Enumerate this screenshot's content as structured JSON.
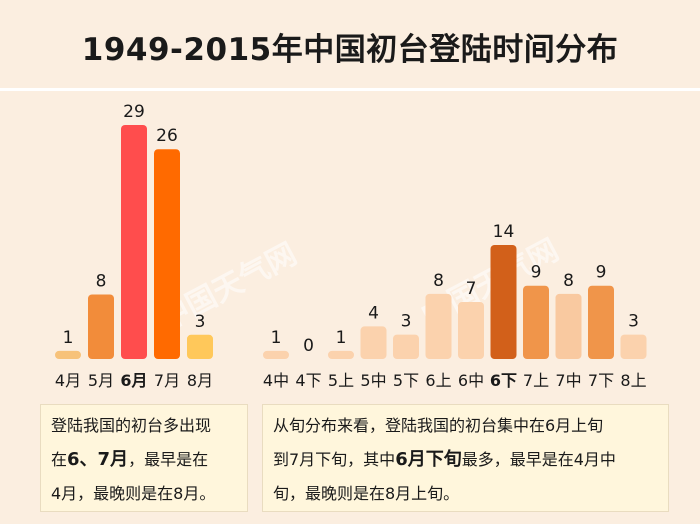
{
  "title": "1949-2015年中国初台登陆时间分布",
  "watermark": "中国天气网",
  "chart_data": [
    {
      "type": "bar",
      "categories": [
        "4月",
        "5月",
        "6月",
        "7月",
        "8月"
      ],
      "values": [
        1,
        8,
        29,
        26,
        3
      ],
      "highlight": "6月",
      "colors": [
        "#f7c27a",
        "#f28c3a",
        "#ff4d4d",
        "#ff6a00",
        "#ffc85a"
      ],
      "ylim": [
        0,
        29
      ]
    },
    {
      "type": "bar",
      "categories": [
        "4中",
        "4下",
        "5上",
        "5中",
        "5下",
        "6上",
        "6中",
        "6下",
        "7上",
        "7中",
        "7下",
        "8上"
      ],
      "values": [
        1,
        0,
        1,
        4,
        3,
        8,
        7,
        14,
        9,
        8,
        9,
        3
      ],
      "highlight": "6下",
      "colors": [
        "#fbd2ad",
        "#fbd2ad",
        "#fbd2ad",
        "#fbd2ad",
        "#fbd2ad",
        "#fbd2ad",
        "#fbd2ad",
        "#d2601a",
        "#f0954a",
        "#f9c9a0",
        "#f0954a",
        "#fbd2ad"
      ],
      "ylim": [
        0,
        14
      ]
    }
  ],
  "notes": {
    "left": {
      "line1": "登陆我国的初台多出现",
      "line2_pre": "在",
      "line2_bold": "6、7月",
      "line2_post": "，最早是在",
      "line3": "4月，最晚则是在8月。"
    },
    "right": {
      "line1": "从旬分布来看，登陆我国的初台集中在6月上旬",
      "line2_pre": "到7月下旬，其中",
      "line2_bold": "6月下旬",
      "line2_post": "最多，最早是在4月中",
      "line3": "旬，最晚则是在8月上旬。"
    }
  }
}
